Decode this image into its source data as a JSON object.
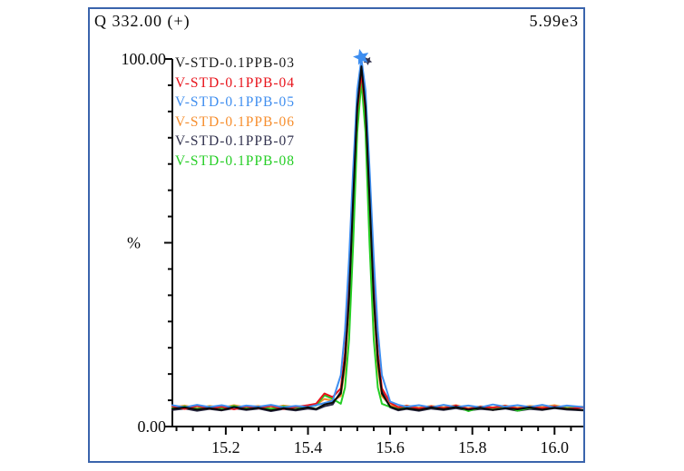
{
  "header": {
    "channel_label": "Q 332.00 (+)",
    "intensity_label": "5.99e3"
  },
  "y_axis": {
    "top_label": "100.00",
    "bottom_label": "0.00",
    "unit": "%"
  },
  "colors": {
    "panel_border": "#3A64AC",
    "axis": "#0a0a0a",
    "marker_star": "#3E8EF0",
    "marker_secondary": "#32324E"
  },
  "chart_data": {
    "type": "line",
    "title": "Q 332.00 (+)",
    "intensity_scale": "5.99e3",
    "xlabel": "",
    "ylabel": "%",
    "xlim": [
      15.07,
      16.07
    ],
    "ylim": [
      0,
      100
    ],
    "x_major_ticks": [
      15.2,
      15.4,
      15.6,
      15.8,
      16.0
    ],
    "x_minor_step": 0.04,
    "y_tick_labels": [
      "100.00",
      "0.00"
    ],
    "grid": false,
    "legend_position": "top-left",
    "peak_retention_time": 15.53,
    "peak_marker": {
      "time": 15.53,
      "value": 100
    },
    "x": [
      15.07,
      15.1,
      15.13,
      15.16,
      15.19,
      15.22,
      15.25,
      15.28,
      15.31,
      15.34,
      15.37,
      15.4,
      15.42,
      15.44,
      15.46,
      15.48,
      15.49,
      15.5,
      15.51,
      15.52,
      15.53,
      15.54,
      15.55,
      15.56,
      15.57,
      15.58,
      15.6,
      15.62,
      15.64,
      15.67,
      15.7,
      15.73,
      15.76,
      15.79,
      15.82,
      15.85,
      15.88,
      15.91,
      15.94,
      15.97,
      16.0,
      16.03,
      16.07
    ],
    "series": [
      {
        "name": "V-STD-0.1PPB-06",
        "color": "#F78E2C",
        "values": [
          5.2,
          5.7,
          5.0,
          5.6,
          5.1,
          5.8,
          5.2,
          5.6,
          5.0,
          5.7,
          5.3,
          5.6,
          5.9,
          7.5,
          7.0,
          8.3,
          16,
          32.5,
          58,
          84,
          95,
          84,
          58,
          32.5,
          16,
          8.3,
          5.8,
          5.3,
          5.7,
          5.1,
          5.6,
          5.2,
          5.8,
          5.0,
          5.5,
          5.2,
          5.7,
          5.1,
          5.6,
          5.3,
          5.8,
          5.1,
          5.4
        ]
      },
      {
        "name": "V-STD-0.1PPB-07",
        "color": "#2A2A46",
        "values": [
          4.5,
          4.9,
          4.3,
          4.8,
          4.4,
          5.0,
          4.5,
          4.9,
          4.2,
          4.8,
          4.4,
          4.9,
          4.6,
          5.5,
          6.0,
          9.5,
          19,
          36,
          63,
          86,
          97,
          86,
          63,
          36,
          19,
          9.5,
          5.2,
          4.4,
          4.8,
          4.3,
          4.9,
          4.5,
          5.0,
          4.4,
          4.8,
          4.5,
          4.9,
          4.3,
          4.8,
          4.5,
          5.0,
          4.6,
          4.4
        ]
      },
      {
        "name": "V-STD-0.1PPB-08",
        "color": "#25CE25",
        "values": [
          5.0,
          5.5,
          4.8,
          5.4,
          5.0,
          5.6,
          4.9,
          5.3,
          4.8,
          5.5,
          5.1,
          5.4,
          5.7,
          8.5,
          7.5,
          6.2,
          10.6,
          23.7,
          49.5,
          80,
          94,
          80,
          49.5,
          23.7,
          10.6,
          6.2,
          5.3,
          4.9,
          5.4,
          4.8,
          5.3,
          5.0,
          5.6,
          4.2,
          5.2,
          4.9,
          5.5,
          4.3,
          5.1,
          4.9,
          5.4,
          5.0,
          5.2
        ]
      },
      {
        "name": "V-STD-0.1PPB-04",
        "color": "#E8131B",
        "values": [
          5.5,
          4.8,
          5.6,
          4.9,
          5.4,
          4.7,
          5.5,
          5.0,
          5.6,
          4.8,
          5.3,
          5.8,
          6.2,
          9.0,
          8.0,
          10.4,
          20,
          38,
          63,
          86,
          96,
          86,
          63,
          38,
          20,
          10.4,
          6.5,
          5.2,
          5.6,
          4.9,
          5.5,
          5.0,
          5.7,
          4.8,
          5.4,
          5.1,
          5.6,
          4.9,
          5.3,
          5.0,
          5.5,
          4.8,
          5.2
        ]
      },
      {
        "name": "V-STD-0.1PPB-05",
        "color": "#3E8EF0",
        "values": [
          5.8,
          5.2,
          5.9,
          5.3,
          5.8,
          5.1,
          5.7,
          5.4,
          5.9,
          5.2,
          5.6,
          5.3,
          5.8,
          6.4,
          7.0,
          14,
          26,
          45.6,
          70,
          91.5,
          100,
          91.5,
          70,
          45.6,
          26,
          14,
          6.8,
          5.9,
          5.4,
          5.8,
          5.2,
          5.9,
          5.3,
          5.7,
          5.2,
          6.0,
          5.4,
          5.8,
          5.3,
          5.9,
          5.2,
          5.7,
          5.3
        ]
      },
      {
        "name": "V-STD-0.1PPB-03",
        "color": "#0a0a0a",
        "values": [
          4.8,
          5.2,
          4.6,
          5.0,
          4.5,
          5.3,
          4.7,
          5.1,
          4.4,
          5.0,
          4.6,
          5.2,
          4.8,
          6.0,
          6.5,
          9,
          18,
          35,
          62,
          87,
          98,
          87,
          62,
          35,
          18,
          9,
          5.4,
          4.6,
          5.0,
          4.5,
          5.2,
          4.7,
          5.3,
          4.6,
          5.1,
          4.5,
          5.0,
          4.7,
          5.2,
          4.6,
          5.1,
          4.8,
          4.5
        ]
      }
    ],
    "legend_order": [
      "V-STD-0.1PPB-03",
      "V-STD-0.1PPB-04",
      "V-STD-0.1PPB-05",
      "V-STD-0.1PPB-06",
      "V-STD-0.1PPB-07",
      "V-STD-0.1PPB-08"
    ],
    "legend_colors": {
      "V-STD-0.1PPB-03": "#1A1A1A",
      "V-STD-0.1PPB-04": "#E8131B",
      "V-STD-0.1PPB-05": "#3E8EF0",
      "V-STD-0.1PPB-06": "#F78E2C",
      "V-STD-0.1PPB-07": "#32324E",
      "V-STD-0.1PPB-08": "#25CE25"
    }
  }
}
